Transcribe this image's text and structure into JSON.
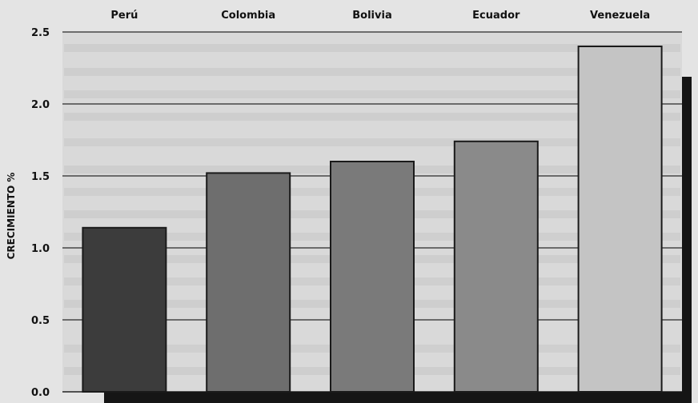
{
  "chart_data": {
    "type": "bar",
    "title": "",
    "xlabel": "",
    "ylabel": "CRECIMIENTO %",
    "categories": [
      "Perú",
      "Colombia",
      "Bolivia",
      "Ecuador",
      "Venezuela"
    ],
    "values": [
      1.14,
      1.52,
      1.6,
      1.74,
      2.4
    ],
    "ylim": [
      0,
      2.5
    ],
    "yticks": [
      "0.0",
      "0.5",
      "1.0",
      "1.5",
      "2.0",
      "2.5"
    ],
    "grid": true,
    "category_label_position": "top",
    "bar_colors": [
      "#3c3c3c",
      "#6e6e6e",
      "#7a7a7a",
      "#8a8a8a",
      "#c4c4c4"
    ]
  }
}
